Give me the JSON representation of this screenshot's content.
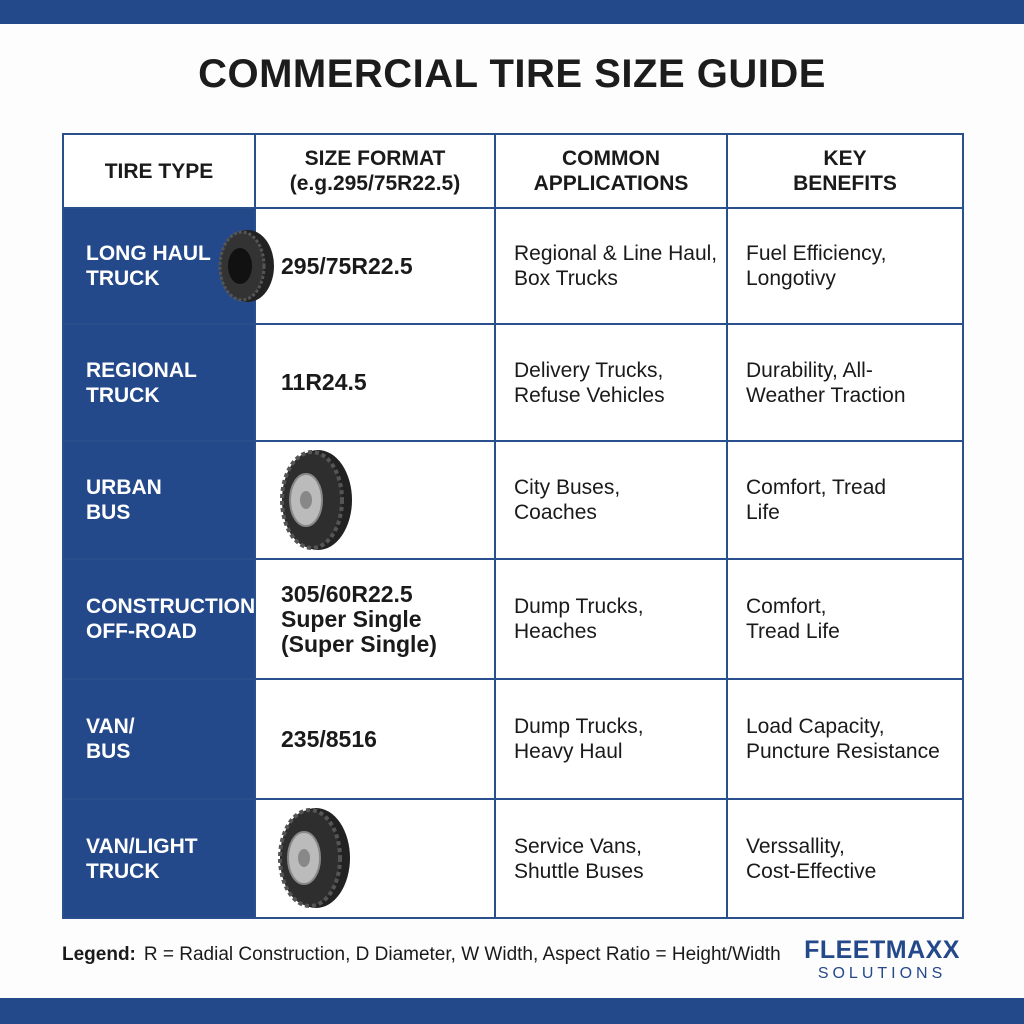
{
  "header": {
    "title": "COMMERCIAL TIRE SIZE GUIDE"
  },
  "table": {
    "columns": [
      [
        "TIRE TYPE"
      ],
      [
        "SIZE FORMAT",
        "(e.g.295/75R22.5)"
      ],
      [
        "COMMON",
        "APPLICATIONS"
      ],
      [
        "KEY",
        "BENEFITS"
      ]
    ],
    "rows": [
      [
        [
          "LONG HAUL",
          "TRUCK"
        ],
        [
          "295/75R22.5"
        ],
        [
          "Regional & Line Haul,",
          "Box Trucks"
        ],
        [
          "Fuel Efficiency,",
          "Longotivy"
        ]
      ],
      [
        [
          "REGIONAL",
          "TRUCK"
        ],
        [
          "11R24.5"
        ],
        [
          "Delivery Trucks,",
          "Refuse Vehicles"
        ],
        [
          "Durability, All-",
          "Weather Traction"
        ]
      ],
      [
        [
          "URBAN",
          "BUS"
        ],
        [],
        [
          "City Buses,",
          "Coaches"
        ],
        [
          "Comfort, Tread",
          "Life"
        ]
      ],
      [
        [
          "CONSTRUCTION/",
          "OFF-ROAD"
        ],
        [
          "305/60R22.5",
          "Super Single",
          "(Super Single)"
        ],
        [
          "Dump Trucks,",
          "Heaches"
        ],
        [
          "Comfort,",
          "Tread Life"
        ]
      ],
      [
        [
          "VAN/",
          "BUS"
        ],
        [
          "235/8516"
        ],
        [
          "Dump Trucks,",
          "Heavy Haul"
        ],
        [
          "Load Capacity,",
          "Puncture Resistance"
        ]
      ],
      [
        [
          "VAN/LIGHT",
          "TRUCK"
        ],
        [],
        [
          "Service Vans,",
          "Shuttle Buses"
        ],
        [
          "Verssallity,",
          "Cost-Effective"
        ]
      ]
    ]
  },
  "legend": {
    "label": "Legend:",
    "text": "R = Radial Construction, D Diameter, W  Width,   Aspect Ratio = Height/Width"
  },
  "logo": {
    "name": "FLEETMAXX",
    "tagline": "SOLUTIONS"
  }
}
